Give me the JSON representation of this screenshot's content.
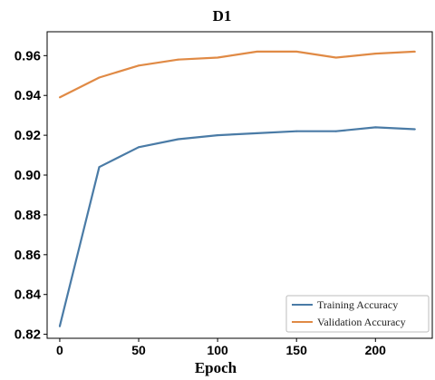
{
  "chart_data": {
    "type": "line",
    "title": "D1",
    "xlabel": "Epoch",
    "ylabel": "",
    "xlim": [
      -8,
      236
    ],
    "ylim": [
      0.818,
      0.972
    ],
    "xticks": [
      0,
      50,
      100,
      150,
      200
    ],
    "yticks": [
      0.82,
      0.84,
      0.86,
      0.88,
      0.9,
      0.92,
      0.94,
      0.96
    ],
    "xtick_labels": [
      "0",
      "50",
      "100",
      "150",
      "200"
    ],
    "ytick_labels": [
      "0.82",
      "0.84",
      "0.86",
      "0.88",
      "0.90",
      "0.92",
      "0.94",
      "0.96"
    ],
    "grid": false,
    "legend_position": "bottom-right",
    "series": [
      {
        "name": "Training Accuracy",
        "color": "#4a7ba6",
        "x": [
          0,
          25,
          50,
          75,
          100,
          125,
          150,
          175,
          200,
          225
        ],
        "y": [
          0.824,
          0.904,
          0.914,
          0.918,
          0.92,
          0.921,
          0.922,
          0.922,
          0.924,
          0.923
        ]
      },
      {
        "name": "Validation Accuracy",
        "color": "#e08a45",
        "x": [
          0,
          25,
          50,
          75,
          100,
          125,
          150,
          175,
          200,
          225
        ],
        "y": [
          0.939,
          0.949,
          0.955,
          0.958,
          0.959,
          0.962,
          0.962,
          0.959,
          0.961,
          0.962
        ]
      }
    ]
  }
}
